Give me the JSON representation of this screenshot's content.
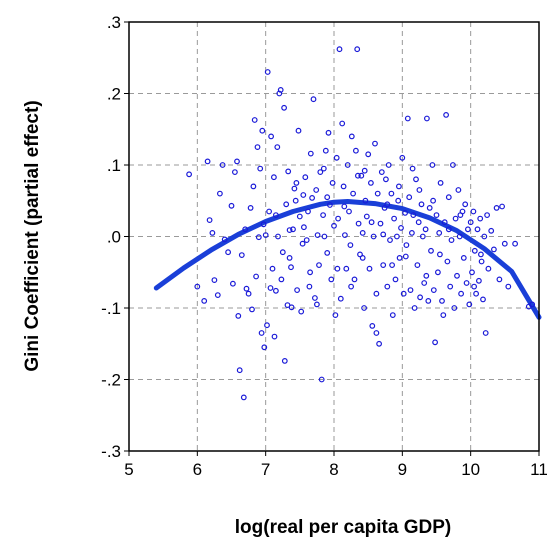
{
  "chart_data": {
    "type": "scatter",
    "title": "",
    "xlabel": "log(real per capita GDP)",
    "ylabel": "Gini  Coefficient  (partial  effect)",
    "xlim": [
      5,
      11
    ],
    "ylim": [
      -0.3,
      0.3
    ],
    "x_ticks": [
      5,
      6,
      7,
      8,
      9,
      10,
      11
    ],
    "x_tick_labels": [
      "5",
      "6",
      "7",
      "8",
      "9",
      "10",
      "11"
    ],
    "y_ticks": [
      -0.3,
      -0.2,
      -0.1,
      0.0,
      0.1,
      0.2,
      0.3
    ],
    "y_tick_labels": [
      "-.3",
      "-.2",
      "-.1",
      ".0",
      ".1",
      ".2",
      ".3"
    ],
    "grid": true,
    "colors": {
      "points": "#1a1ad8",
      "fit": "#1a3fd8",
      "grid": "#9a9a9a"
    },
    "fit_curve": {
      "type": "quadratic",
      "x": [
        5.4,
        5.8,
        6.2,
        6.6,
        7.0,
        7.4,
        7.8,
        8.0,
        8.2,
        8.6,
        9.0,
        9.4,
        9.8,
        10.2,
        10.6,
        11.0
      ],
      "y": [
        -0.072,
        -0.044,
        -0.019,
        0.003,
        0.021,
        0.035,
        0.045,
        0.048,
        0.049,
        0.046,
        0.039,
        0.026,
        0.008,
        -0.017,
        -0.049,
        -0.113
      ]
    },
    "points": [
      [
        5.88,
        0.087
      ],
      [
        6.0,
        -0.07
      ],
      [
        6.1,
        -0.09
      ],
      [
        6.15,
        0.105
      ],
      [
        6.18,
        0.023
      ],
      [
        6.22,
        0.005
      ],
      [
        6.25,
        -0.061
      ],
      [
        6.3,
        -0.082
      ],
      [
        6.33,
        0.06
      ],
      [
        6.37,
        0.1
      ],
      [
        6.4,
        -0.004
      ],
      [
        6.45,
        -0.022
      ],
      [
        6.5,
        0.043
      ],
      [
        6.52,
        -0.066
      ],
      [
        6.55,
        0.09
      ],
      [
        6.58,
        0.105
      ],
      [
        6.6,
        -0.111
      ],
      [
        6.62,
        -0.187
      ],
      [
        6.65,
        -0.026
      ],
      [
        6.68,
        -0.225
      ],
      [
        6.7,
        0.01
      ],
      [
        6.72,
        -0.073
      ],
      [
        6.75,
        -0.08
      ],
      [
        6.78,
        0.04
      ],
      [
        6.8,
        -0.102
      ],
      [
        6.82,
        0.07
      ],
      [
        6.84,
        0.163
      ],
      [
        6.86,
        -0.056
      ],
      [
        6.88,
        0.125
      ],
      [
        6.9,
        -0.001
      ],
      [
        6.92,
        0.095
      ],
      [
        6.94,
        -0.135
      ],
      [
        6.95,
        0.148
      ],
      [
        6.97,
        0.017
      ],
      [
        6.98,
        -0.155
      ],
      [
        7.0,
        0.002
      ],
      [
        7.02,
        -0.124
      ],
      [
        7.03,
        0.23
      ],
      [
        7.05,
        0.035
      ],
      [
        7.07,
        -0.072
      ],
      [
        7.08,
        0.14
      ],
      [
        7.1,
        -0.045
      ],
      [
        7.12,
        0.083
      ],
      [
        7.13,
        -0.14
      ],
      [
        7.15,
        -0.076
      ],
      [
        7.17,
        0.125
      ],
      [
        7.18,
        0.0
      ],
      [
        7.2,
        0.2
      ],
      [
        7.22,
        0.205
      ],
      [
        7.23,
        -0.06
      ],
      [
        7.25,
        -0.022
      ],
      [
        7.27,
        0.18
      ],
      [
        7.28,
        -0.174
      ],
      [
        7.3,
        0.045
      ],
      [
        7.32,
        -0.096
      ],
      [
        7.33,
        0.091
      ],
      [
        7.35,
        0.009
      ],
      [
        7.37,
        -0.043
      ],
      [
        7.38,
        -0.099
      ],
      [
        7.4,
        0.01
      ],
      [
        7.42,
        0.067
      ],
      [
        7.44,
        0.05
      ],
      [
        7.46,
        -0.075
      ],
      [
        7.48,
        0.148
      ],
      [
        7.5,
        0.028
      ],
      [
        7.52,
        -0.105
      ],
      [
        7.54,
        -0.01
      ],
      [
        7.56,
        0.013
      ],
      [
        7.58,
        0.083
      ],
      [
        7.6,
        -0.005
      ],
      [
        7.62,
        0.035
      ],
      [
        7.64,
        -0.07
      ],
      [
        7.66,
        0.116
      ],
      [
        7.68,
        0.054
      ],
      [
        7.7,
        0.192
      ],
      [
        7.72,
        -0.086
      ],
      [
        7.74,
        0.065
      ],
      [
        7.76,
        0.002
      ],
      [
        7.78,
        -0.04
      ],
      [
        7.8,
        0.09
      ],
      [
        7.82,
        -0.2
      ],
      [
        7.84,
        0.03
      ],
      [
        7.86,
        0.0
      ],
      [
        7.88,
        0.12
      ],
      [
        7.9,
        -0.023
      ],
      [
        7.92,
        0.145
      ],
      [
        7.94,
        0.044
      ],
      [
        7.96,
        -0.06
      ],
      [
        7.98,
        0.075
      ],
      [
        8.0,
        0.015
      ],
      [
        8.02,
        -0.11
      ],
      [
        8.04,
        0.11
      ],
      [
        8.06,
        0.025
      ],
      [
        8.08,
        0.262
      ],
      [
        8.1,
        -0.087
      ],
      [
        8.12,
        0.158
      ],
      [
        8.14,
        0.07
      ],
      [
        8.16,
        0.002
      ],
      [
        8.18,
        -0.045
      ],
      [
        8.2,
        0.1
      ],
      [
        8.22,
        0.035
      ],
      [
        8.24,
        -0.012
      ],
      [
        8.26,
        0.14
      ],
      [
        8.28,
        0.06
      ],
      [
        8.3,
        -0.06
      ],
      [
        8.32,
        0.12
      ],
      [
        8.34,
        0.262
      ],
      [
        8.36,
        0.018
      ],
      [
        8.38,
        -0.025
      ],
      [
        8.4,
        0.085
      ],
      [
        8.42,
        0.005
      ],
      [
        8.44,
        -0.1
      ],
      [
        8.46,
        0.05
      ],
      [
        8.48,
        0.028
      ],
      [
        8.5,
        0.115
      ],
      [
        8.52,
        -0.045
      ],
      [
        8.54,
        0.075
      ],
      [
        8.56,
        -0.125
      ],
      [
        8.58,
        0.0
      ],
      [
        8.6,
        0.13
      ],
      [
        8.62,
        -0.135
      ],
      [
        8.64,
        0.06
      ],
      [
        8.66,
        -0.15
      ],
      [
        8.68,
        0.018
      ],
      [
        8.7,
        0.09
      ],
      [
        8.72,
        -0.04
      ],
      [
        8.74,
        0.04
      ],
      [
        8.76,
        0.08
      ],
      [
        8.78,
        -0.07
      ],
      [
        8.8,
        0.1
      ],
      [
        8.82,
        -0.005
      ],
      [
        8.84,
        0.06
      ],
      [
        8.86,
        -0.11
      ],
      [
        8.88,
        0.025
      ],
      [
        8.9,
        -0.06
      ],
      [
        8.92,
        0.0
      ],
      [
        8.94,
        0.05
      ],
      [
        8.96,
        -0.03
      ],
      [
        8.98,
        0.012
      ],
      [
        9.0,
        0.11
      ],
      [
        9.02,
        -0.08
      ],
      [
        9.04,
        0.033
      ],
      [
        9.06,
        -0.012
      ],
      [
        9.08,
        0.165
      ],
      [
        9.1,
        0.055
      ],
      [
        9.12,
        -0.075
      ],
      [
        9.14,
        0.005
      ],
      [
        9.16,
        0.03
      ],
      [
        9.18,
        -0.1
      ],
      [
        9.2,
        0.08
      ],
      [
        9.22,
        -0.04
      ],
      [
        9.24,
        0.02
      ],
      [
        9.26,
        -0.085
      ],
      [
        9.28,
        0.045
      ],
      [
        9.3,
        0.0
      ],
      [
        9.32,
        -0.065
      ],
      [
        9.34,
        0.01
      ],
      [
        9.36,
        0.165
      ],
      [
        9.38,
        -0.09
      ],
      [
        9.4,
        0.04
      ],
      [
        9.42,
        -0.02
      ],
      [
        9.44,
        0.1
      ],
      [
        9.46,
        -0.075
      ],
      [
        9.48,
        -0.148
      ],
      [
        9.5,
        0.03
      ],
      [
        9.52,
        -0.05
      ],
      [
        9.54,
        0.005
      ],
      [
        9.56,
        0.075
      ],
      [
        9.58,
        -0.09
      ],
      [
        9.6,
        -0.11
      ],
      [
        9.62,
        0.02
      ],
      [
        9.64,
        0.17
      ],
      [
        9.66,
        -0.035
      ],
      [
        9.68,
        0.055
      ],
      [
        9.7,
        -0.07
      ],
      [
        9.72,
        -0.005
      ],
      [
        9.74,
        0.1
      ],
      [
        9.76,
        -0.1
      ],
      [
        9.78,
        0.025
      ],
      [
        9.8,
        -0.055
      ],
      [
        9.82,
        0.065
      ],
      [
        9.84,
        0.0
      ],
      [
        9.86,
        -0.08
      ],
      [
        9.88,
        0.035
      ],
      [
        9.9,
        -0.03
      ],
      [
        9.92,
        0.045
      ],
      [
        9.94,
        -0.065
      ],
      [
        9.96,
        0.01
      ],
      [
        9.98,
        -0.095
      ],
      [
        10.0,
        0.02
      ],
      [
        10.02,
        -0.05
      ],
      [
        10.04,
        0.035
      ],
      [
        10.06,
        -0.02
      ],
      [
        10.08,
        -0.08
      ],
      [
        10.1,
        0.01
      ],
      [
        10.12,
        -0.062
      ],
      [
        10.14,
        0.025
      ],
      [
        10.16,
        -0.035
      ],
      [
        10.18,
        -0.088
      ],
      [
        10.2,
        0.0
      ],
      [
        10.22,
        -0.135
      ],
      [
        10.24,
        0.03
      ],
      [
        10.26,
        -0.045
      ],
      [
        10.3,
        0.008
      ],
      [
        10.34,
        -0.018
      ],
      [
        10.38,
        0.04
      ],
      [
        10.42,
        -0.06
      ],
      [
        10.46,
        0.042
      ],
      [
        10.5,
        -0.01
      ],
      [
        10.55,
        -0.07
      ],
      [
        10.65,
        -0.01
      ],
      [
        10.85,
        -0.098
      ],
      [
        10.9,
        -0.095
      ],
      [
        7.55,
        0.058
      ],
      [
        7.9,
        0.055
      ],
      [
        8.45,
        0.092
      ],
      [
        8.15,
        0.042
      ],
      [
        8.72,
        0.003
      ],
      [
        9.05,
        -0.028
      ],
      [
        8.25,
        -0.07
      ],
      [
        7.65,
        -0.05
      ],
      [
        8.55,
        0.02
      ],
      [
        8.95,
        0.07
      ],
      [
        7.35,
        -0.03
      ],
      [
        8.35,
        0.085
      ],
      [
        9.25,
        0.065
      ],
      [
        9.55,
        -0.025
      ],
      [
        8.85,
        -0.04
      ],
      [
        7.15,
        0.03
      ],
      [
        7.75,
        -0.095
      ],
      [
        8.62,
        -0.08
      ],
      [
        9.15,
        0.095
      ],
      [
        9.85,
        0.03
      ],
      [
        10.05,
        -0.07
      ],
      [
        9.45,
        0.05
      ],
      [
        8.05,
        -0.045
      ],
      [
        7.45,
        0.075
      ],
      [
        8.78,
        0.045
      ],
      [
        9.68,
        0.01
      ],
      [
        10.15,
        -0.025
      ],
      [
        9.35,
        -0.055
      ],
      [
        8.42,
        -0.03
      ],
      [
        7.85,
        0.095
      ]
    ]
  }
}
